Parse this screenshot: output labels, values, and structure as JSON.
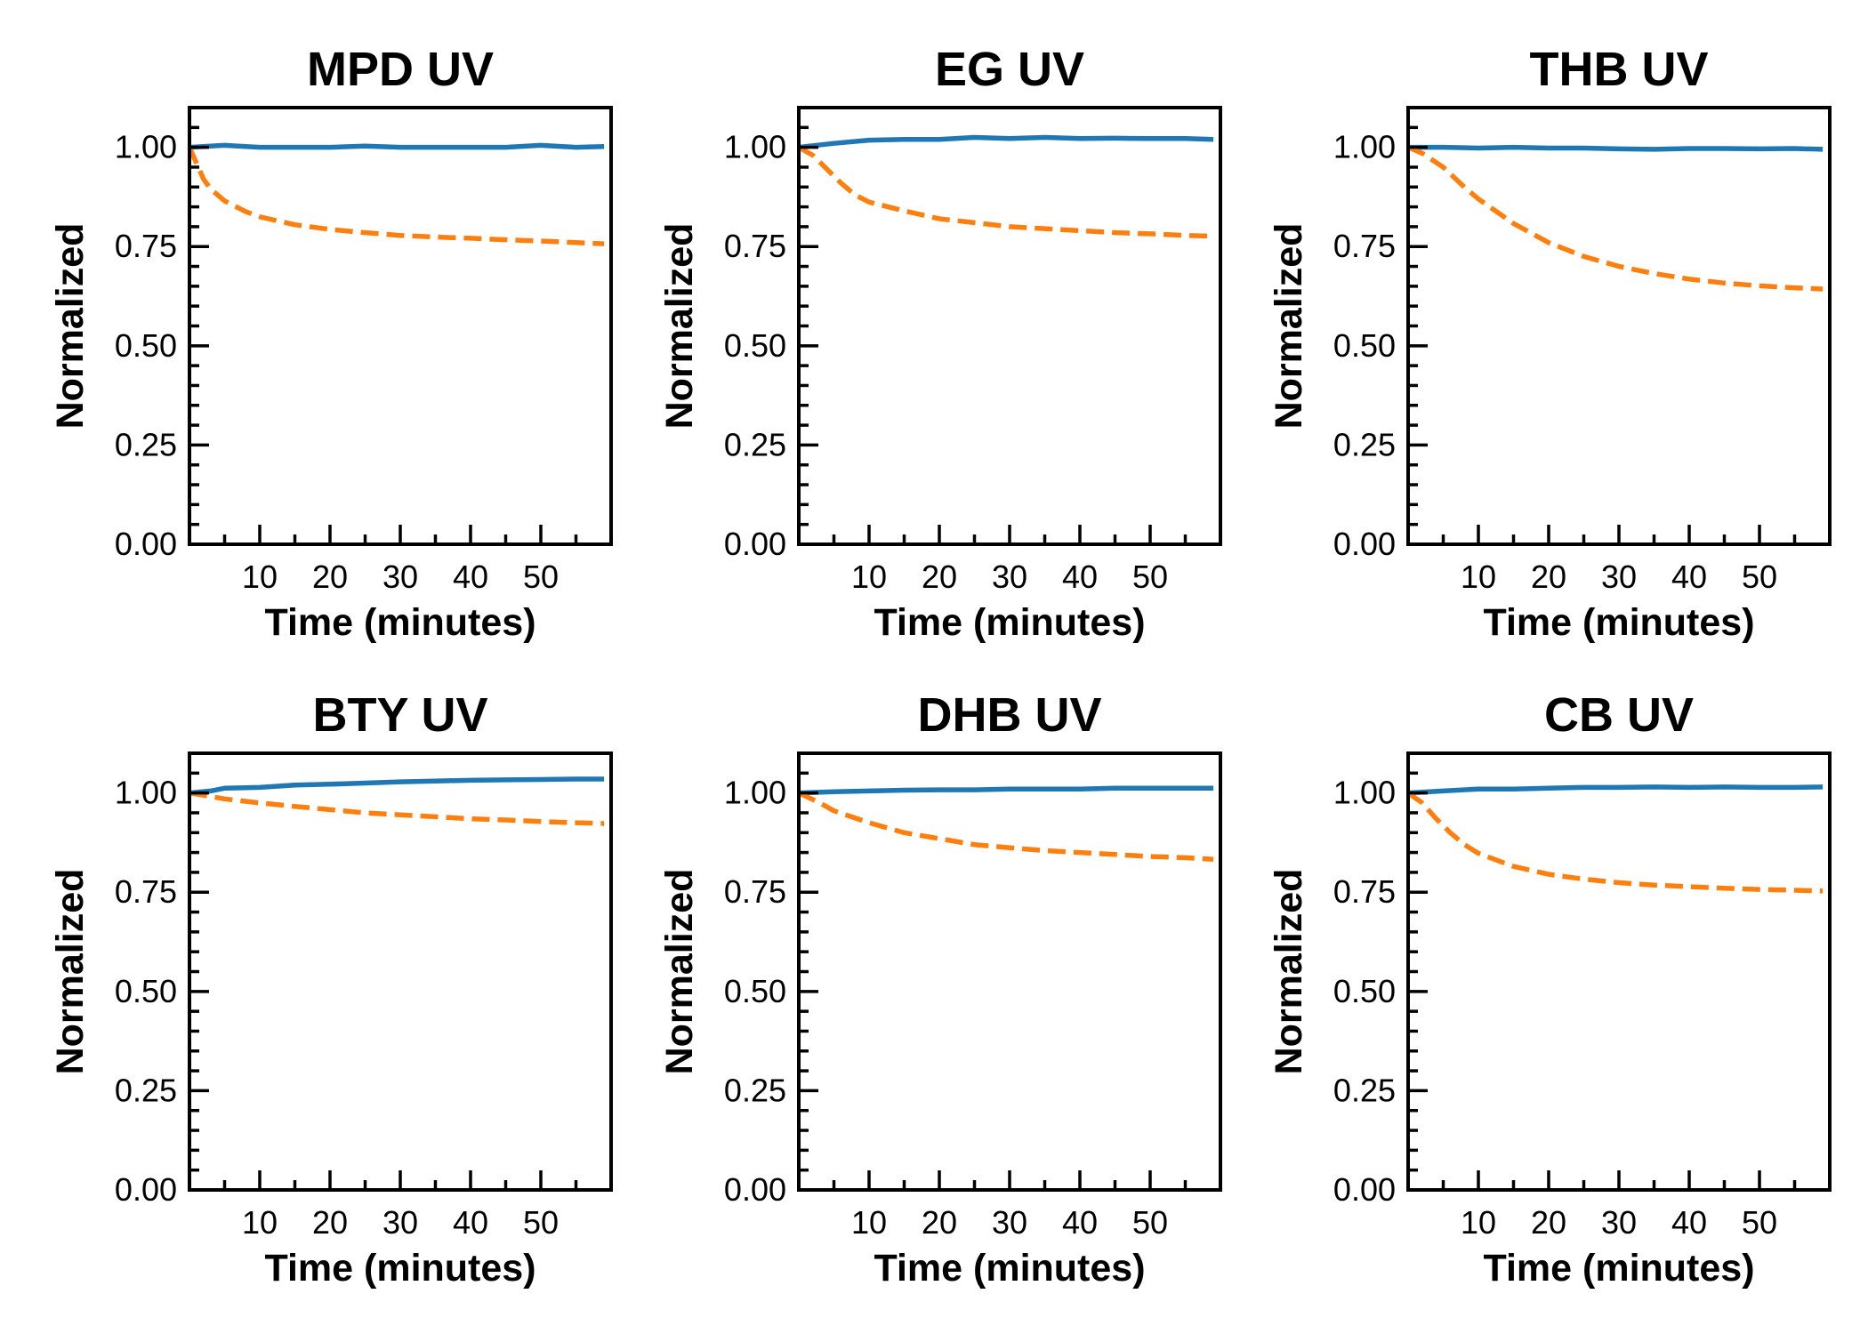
{
  "chart_data": [
    {
      "type": "line",
      "title": "MPD UV",
      "xlabel": "Time (minutes)",
      "ylabel": "Normalized",
      "xlim": [
        0,
        60
      ],
      "ylim": [
        0,
        1.1
      ],
      "xticks": [
        "10",
        "20",
        "30",
        "40",
        "50"
      ],
      "yticks": [
        "0.00",
        "0.25",
        "0.50",
        "0.75",
        "1.00"
      ],
      "grid": false,
      "series": [
        {
          "style": "solid",
          "color": "#1f77b4",
          "x": [
            0,
            5,
            10,
            15,
            20,
            25,
            30,
            35,
            40,
            45,
            50,
            55,
            59
          ],
          "y": [
            1.0,
            1.005,
            1.0,
            1.0,
            1.0,
            1.003,
            1.0,
            1.0,
            1.0,
            1.0,
            1.005,
            1.0,
            1.002
          ]
        },
        {
          "style": "dashed",
          "color": "#ff7f0e",
          "x": [
            0,
            1,
            2,
            3,
            5,
            8,
            10,
            15,
            20,
            25,
            30,
            35,
            40,
            45,
            50,
            55,
            59
          ],
          "y": [
            1.0,
            0.96,
            0.92,
            0.895,
            0.865,
            0.838,
            0.825,
            0.805,
            0.793,
            0.785,
            0.778,
            0.774,
            0.771,
            0.767,
            0.764,
            0.76,
            0.757
          ]
        }
      ]
    },
    {
      "type": "line",
      "title": "EG UV",
      "xlabel": "Time (minutes)",
      "ylabel": "Normalized",
      "xlim": [
        0,
        60
      ],
      "ylim": [
        0,
        1.1
      ],
      "xticks": [
        "10",
        "20",
        "30",
        "40",
        "50"
      ],
      "yticks": [
        "0.00",
        "0.25",
        "0.50",
        "0.75",
        "1.00"
      ],
      "grid": false,
      "series": [
        {
          "style": "solid",
          "color": "#1f77b4",
          "x": [
            0,
            5,
            10,
            15,
            20,
            25,
            30,
            35,
            40,
            45,
            50,
            55,
            59
          ],
          "y": [
            1.0,
            1.01,
            1.018,
            1.02,
            1.02,
            1.025,
            1.022,
            1.025,
            1.022,
            1.023,
            1.022,
            1.022,
            1.02
          ]
        },
        {
          "style": "dashed",
          "color": "#ff7f0e",
          "x": [
            0,
            2,
            4,
            6,
            8,
            10,
            15,
            20,
            25,
            30,
            35,
            40,
            45,
            50,
            55,
            59
          ],
          "y": [
            1.0,
            0.98,
            0.945,
            0.91,
            0.88,
            0.862,
            0.84,
            0.82,
            0.81,
            0.8,
            0.795,
            0.79,
            0.785,
            0.782,
            0.778,
            0.776
          ]
        }
      ]
    },
    {
      "type": "line",
      "title": "THB UV",
      "xlabel": "Time (minutes)",
      "ylabel": "Normalized",
      "xlim": [
        0,
        60
      ],
      "ylim": [
        0,
        1.1
      ],
      "xticks": [
        "10",
        "20",
        "30",
        "40",
        "50"
      ],
      "yticks": [
        "0.00",
        "0.25",
        "0.50",
        "0.75",
        "1.00"
      ],
      "grid": false,
      "series": [
        {
          "style": "solid",
          "color": "#1f77b4",
          "x": [
            0,
            5,
            10,
            15,
            20,
            25,
            30,
            35,
            40,
            45,
            50,
            55,
            59
          ],
          "y": [
            1.0,
            1.0,
            0.998,
            1.0,
            0.998,
            0.998,
            0.996,
            0.995,
            0.997,
            0.997,
            0.996,
            0.997,
            0.995
          ]
        },
        {
          "style": "dashed",
          "color": "#ff7f0e",
          "x": [
            0,
            2,
            5,
            8,
            10,
            15,
            20,
            25,
            30,
            35,
            40,
            45,
            50,
            55,
            59
          ],
          "y": [
            1.0,
            0.985,
            0.95,
            0.9,
            0.87,
            0.808,
            0.76,
            0.725,
            0.7,
            0.682,
            0.668,
            0.658,
            0.651,
            0.646,
            0.643
          ]
        }
      ]
    },
    {
      "type": "line",
      "title": "BTY UV",
      "xlabel": "Time (minutes)",
      "ylabel": "Normalized",
      "xlim": [
        0,
        60
      ],
      "ylim": [
        0,
        1.1
      ],
      "xticks": [
        "10",
        "20",
        "30",
        "40",
        "50"
      ],
      "yticks": [
        "0.00",
        "0.25",
        "0.50",
        "0.75",
        "1.00"
      ],
      "grid": false,
      "series": [
        {
          "style": "solid",
          "color": "#1f77b4",
          "x": [
            0,
            3,
            5,
            10,
            15,
            20,
            25,
            30,
            35,
            40,
            45,
            50,
            55,
            59
          ],
          "y": [
            1.0,
            1.005,
            1.012,
            1.014,
            1.02,
            1.022,
            1.025,
            1.028,
            1.03,
            1.032,
            1.033,
            1.034,
            1.035,
            1.035
          ]
        },
        {
          "style": "dashed",
          "color": "#ff7f0e",
          "x": [
            0,
            5,
            10,
            15,
            20,
            25,
            30,
            35,
            40,
            45,
            50,
            55,
            59
          ],
          "y": [
            1.0,
            0.985,
            0.975,
            0.966,
            0.958,
            0.95,
            0.945,
            0.94,
            0.935,
            0.932,
            0.928,
            0.925,
            0.923
          ]
        }
      ]
    },
    {
      "type": "line",
      "title": "DHB UV",
      "xlabel": "Time (minutes)",
      "ylabel": "Normalized",
      "xlim": [
        0,
        60
      ],
      "ylim": [
        0,
        1.1
      ],
      "xticks": [
        "10",
        "20",
        "30",
        "40",
        "50"
      ],
      "yticks": [
        "0.00",
        "0.25",
        "0.50",
        "0.75",
        "1.00"
      ],
      "grid": false,
      "series": [
        {
          "style": "solid",
          "color": "#1f77b4",
          "x": [
            0,
            5,
            10,
            15,
            20,
            25,
            30,
            35,
            40,
            45,
            50,
            55,
            59
          ],
          "y": [
            1.0,
            1.003,
            1.005,
            1.007,
            1.008,
            1.008,
            1.01,
            1.01,
            1.01,
            1.012,
            1.012,
            1.012,
            1.012
          ]
        },
        {
          "style": "dashed",
          "color": "#ff7f0e",
          "x": [
            0,
            3,
            5,
            10,
            15,
            20,
            25,
            30,
            35,
            40,
            45,
            50,
            55,
            59
          ],
          "y": [
            1.0,
            0.975,
            0.955,
            0.925,
            0.9,
            0.885,
            0.87,
            0.862,
            0.855,
            0.85,
            0.845,
            0.84,
            0.837,
            0.833
          ]
        }
      ]
    },
    {
      "type": "line",
      "title": "CB UV",
      "xlabel": "Time (minutes)",
      "ylabel": "Normalized",
      "xlim": [
        0,
        60
      ],
      "ylim": [
        0,
        1.1
      ],
      "xticks": [
        "10",
        "20",
        "30",
        "40",
        "50"
      ],
      "yticks": [
        "0.00",
        "0.25",
        "0.50",
        "0.75",
        "1.00"
      ],
      "grid": false,
      "series": [
        {
          "style": "solid",
          "color": "#1f77b4",
          "x": [
            0,
            5,
            10,
            15,
            20,
            25,
            30,
            35,
            40,
            45,
            50,
            55,
            59
          ],
          "y": [
            1.0,
            1.005,
            1.01,
            1.01,
            1.012,
            1.014,
            1.014,
            1.015,
            1.014,
            1.015,
            1.014,
            1.014,
            1.015
          ]
        },
        {
          "style": "dashed",
          "color": "#ff7f0e",
          "x": [
            0,
            2,
            4,
            6,
            8,
            10,
            15,
            20,
            25,
            30,
            35,
            40,
            45,
            50,
            55,
            59
          ],
          "y": [
            1.0,
            0.975,
            0.935,
            0.9,
            0.87,
            0.848,
            0.815,
            0.795,
            0.783,
            0.774,
            0.768,
            0.764,
            0.76,
            0.757,
            0.755,
            0.753
          ]
        }
      ]
    }
  ]
}
